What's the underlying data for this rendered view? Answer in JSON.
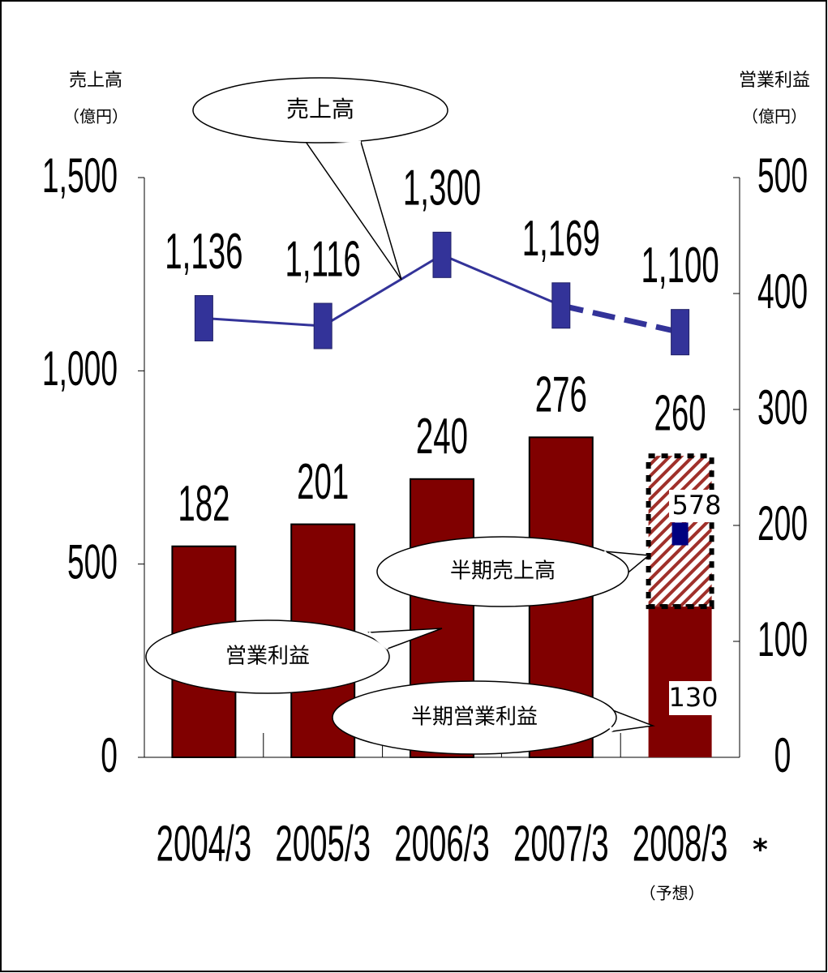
{
  "chart_data": {
    "type": "bar",
    "categories": [
      "2004/3",
      "2005/3",
      "2006/3",
      "2007/3",
      "2008/3"
    ],
    "series": [
      {
        "name": "営業利益",
        "type": "bar",
        "axis": "y2",
        "color": "#800000",
        "values": [
          182,
          201,
          240,
          276,
          260
        ]
      },
      {
        "name": "売上高",
        "type": "line",
        "color": "#333399",
        "values": [
          1136,
          1116,
          1300,
          1169,
          1100
        ],
        "value_labels": [
          "1,136",
          "1,116",
          "1,300",
          "1,169",
          "1,100"
        ]
      }
    ],
    "half_year": [
      {
        "name": "半期売上高",
        "value": 578,
        "color": "#000080"
      },
      {
        "name": "半期営業利益",
        "value": 130,
        "axis": "y2"
      }
    ],
    "y_title": "売上高",
    "y_unit": "（億円）",
    "y2_title": "営業利益",
    "y2_unit": "（億円）",
    "forecast_mark": "*",
    "forecast_label": "（予想）",
    "ylim": [
      0,
      1500
    ],
    "yticks": [
      0,
      500,
      {
        "value": 1000,
        "label": "1,000"
      },
      {
        "value": 1500,
        "label": "1,500"
      }
    ],
    "y2lim": [
      0,
      500
    ],
    "y2ticks": [
      0,
      100,
      200,
      300,
      400,
      500
    ]
  }
}
